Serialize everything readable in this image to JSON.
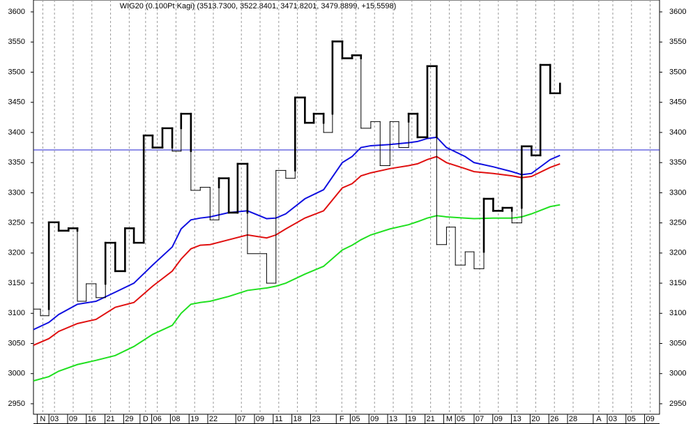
{
  "chart_data": {
    "type": "kagi",
    "title": "WIG20 (0.100Pt Kagi)  (3513.7300, 3522.8401, 3471.8201, 3479.8899, +15.5598)",
    "xlim": [
      0,
      134
    ],
    "xticks": [
      {
        "value": 2,
        "label": "N"
      },
      {
        "value": 4.5,
        "label": "03"
      },
      {
        "value": 8.5,
        "label": "09"
      },
      {
        "value": 12.5,
        "label": "16"
      },
      {
        "value": 16.5,
        "label": "21"
      },
      {
        "value": 20.5,
        "label": "29"
      },
      {
        "value": 24,
        "label": "D"
      },
      {
        "value": 26.5,
        "label": "06"
      },
      {
        "value": 30.5,
        "label": "08"
      },
      {
        "value": 34.5,
        "label": "19"
      },
      {
        "value": 38.5,
        "label": "22"
      },
      {
        "value": 44.5,
        "label": "07"
      },
      {
        "value": 48.5,
        "label": "09"
      },
      {
        "value": 52.5,
        "label": "11"
      },
      {
        "value": 56.5,
        "label": "18"
      },
      {
        "value": 60.5,
        "label": "23"
      },
      {
        "value": 66,
        "label": "F"
      },
      {
        "value": 69,
        "label": "05"
      },
      {
        "value": 73,
        "label": "09"
      },
      {
        "value": 77,
        "label": "13"
      },
      {
        "value": 81,
        "label": "19"
      },
      {
        "value": 85,
        "label": "21"
      },
      {
        "value": 89,
        "label": "M"
      },
      {
        "value": 91.5,
        "label": "05"
      },
      {
        "value": 95.5,
        "label": "07"
      },
      {
        "value": 99.5,
        "label": "09"
      },
      {
        "value": 103.5,
        "label": "13"
      },
      {
        "value": 107.5,
        "label": "20"
      },
      {
        "value": 111.5,
        "label": "26"
      },
      {
        "value": 115.5,
        "label": "28"
      },
      {
        "value": 121,
        "label": "A"
      },
      {
        "value": 124,
        "label": "03"
      },
      {
        "value": 128,
        "label": "05"
      },
      {
        "value": 132,
        "label": "09"
      }
    ],
    "ylim": [
      2932.6,
      3619.7
    ],
    "yticks": [
      2950,
      3000,
      3050,
      3100,
      3150,
      3200,
      3250,
      3300,
      3350,
      3400,
      3450,
      3500,
      3550,
      3600
    ],
    "grid": true,
    "reference_line": {
      "value": 3371,
      "color": "#1f1fd0"
    },
    "kagi": {
      "color": "#000000",
      "x": [
        0,
        1.5,
        3.3,
        5.4,
        7.5,
        9.4,
        11.3,
        13.4,
        15.4,
        17.5,
        19.6,
        21.5,
        23.6,
        25.5,
        27.6,
        29.7,
        31.6,
        33.7,
        35.7,
        37.8,
        39.7,
        41.8,
        43.7,
        45.8,
        49.9,
        51.9,
        54.0,
        56.0,
        58.1,
        60.0,
        62.1,
        64.0,
        66.1,
        68.2,
        70.1,
        72.2,
        74.2,
        76.3,
        78.2,
        80.3,
        82.2,
        84.3,
        86.3,
        88.4,
        90.3,
        92.4,
        94.3,
        96.4,
        98.4,
        100.4,
        102.4,
        104.5,
        106.6,
        108.5,
        110.6,
        112.7
      ],
      "values": [
        3107,
        3096,
        3251,
        3237,
        3241,
        3120,
        3149,
        3126,
        3217,
        3170,
        3241,
        3217,
        3395,
        3375,
        3407,
        3369,
        3431,
        3304,
        3309,
        3255,
        3324,
        3267,
        3348,
        3199,
        3150,
        3337,
        3324,
        3458,
        3416,
        3431,
        3400,
        3551,
        3523,
        3528,
        3407,
        3418,
        3345,
        3418,
        3375,
        3431,
        3392,
        3510,
        3214,
        3243,
        3180,
        3202,
        3174,
        3290,
        3270,
        3275,
        3250,
        3377,
        3362,
        3512,
        3465,
        3481
      ]
    },
    "series": [
      {
        "color": "#1010e0",
        "x": [
          0,
          3.3,
          5.4,
          9.4,
          13.4,
          17.5,
          21.5,
          25.5,
          29.7,
          31.6,
          33.7,
          35.7,
          37.8,
          41.8,
          45.8,
          49.9,
          51.9,
          54.0,
          58.1,
          62.1,
          66.1,
          68.2,
          70.1,
          72.2,
          76.3,
          80.3,
          82.2,
          84.3,
          86.3,
          88.4,
          92.4,
          94.3,
          98.4,
          102.4,
          104.5,
          106.6,
          110.6,
          112.7
        ],
        "values": [
          3073,
          3085,
          3098,
          3115,
          3120,
          3135,
          3150,
          3180,
          3210,
          3240,
          3255,
          3258,
          3260,
          3267,
          3270,
          3257,
          3258,
          3265,
          3290,
          3305,
          3350,
          3360,
          3375,
          3378,
          3380,
          3383,
          3385,
          3390,
          3392,
          3375,
          3360,
          3350,
          3343,
          3335,
          3330,
          3332,
          3355,
          3362
        ]
      },
      {
        "color": "#e01010",
        "x": [
          0,
          3.3,
          5.4,
          9.4,
          13.4,
          17.5,
          21.5,
          25.5,
          29.7,
          31.6,
          33.7,
          35.7,
          37.8,
          41.8,
          45.8,
          49.9,
          51.9,
          54.0,
          58.1,
          62.1,
          66.1,
          68.2,
          70.1,
          72.2,
          76.3,
          80.3,
          82.2,
          84.3,
          86.3,
          88.4,
          92.4,
          94.3,
          98.4,
          102.4,
          104.5,
          106.6,
          110.6,
          112.7
        ],
        "values": [
          3047,
          3058,
          3070,
          3083,
          3090,
          3110,
          3118,
          3145,
          3170,
          3190,
          3207,
          3213,
          3214,
          3222,
          3230,
          3225,
          3230,
          3240,
          3258,
          3270,
          3308,
          3315,
          3328,
          3333,
          3340,
          3345,
          3348,
          3355,
          3360,
          3350,
          3340,
          3335,
          3332,
          3328,
          3325,
          3327,
          3342,
          3348
        ]
      },
      {
        "color": "#20e020",
        "x": [
          0,
          3.3,
          5.4,
          9.4,
          13.4,
          17.5,
          21.5,
          25.5,
          29.7,
          31.6,
          33.7,
          35.7,
          37.8,
          41.8,
          45.8,
          49.9,
          51.9,
          54.0,
          58.1,
          62.1,
          66.1,
          68.2,
          70.1,
          72.2,
          76.3,
          80.3,
          82.2,
          84.3,
          86.3,
          88.4,
          92.4,
          94.3,
          98.4,
          102.4,
          104.5,
          106.6,
          110.6,
          112.7
        ],
        "values": [
          2988,
          2995,
          3004,
          3015,
          3022,
          3030,
          3045,
          3065,
          3080,
          3100,
          3115,
          3118,
          3120,
          3128,
          3138,
          3142,
          3145,
          3150,
          3165,
          3178,
          3205,
          3213,
          3222,
          3230,
          3240,
          3247,
          3252,
          3258,
          3262,
          3260,
          3258,
          3257,
          3258,
          3258,
          3260,
          3265,
          3277,
          3280
        ]
      }
    ]
  }
}
